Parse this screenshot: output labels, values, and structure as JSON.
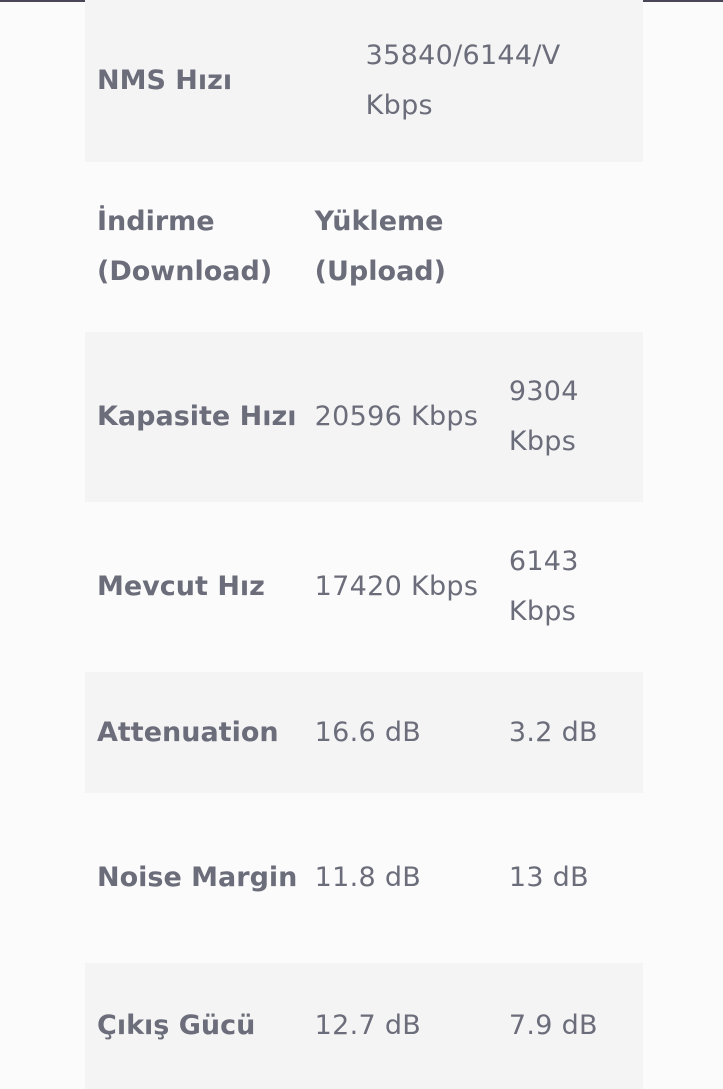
{
  "nms": {
    "label": "NMS Hızı",
    "value": "35840/6144/V Kbps"
  },
  "header": {
    "download": "İndirme (Download)",
    "upload": "Yükleme (Upload)"
  },
  "rows": [
    {
      "label": "Kapasite Hızı",
      "download": "20596 Kbps",
      "upload": "9304 Kbps"
    },
    {
      "label": "Mevcut Hız",
      "download": "17420 Kbps",
      "upload": "6143 Kbps"
    },
    {
      "label": "Attenuation",
      "download": "16.6 dB",
      "upload": "3.2 dB"
    },
    {
      "label": "Noise Margin",
      "download": "11.8 dB",
      "upload": "13 dB"
    },
    {
      "label": "Çıkış Gücü",
      "download": "12.7 dB",
      "upload": "7.9 dB"
    }
  ]
}
